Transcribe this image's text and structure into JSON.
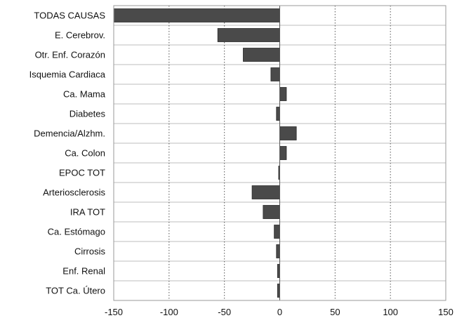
{
  "chart_data": {
    "type": "bar",
    "orientation": "horizontal",
    "categories": [
      "TODAS CAUSAS",
      "E. Cerebrov.",
      "Otr. Enf. Corazón",
      "Isquemia Cardiaca",
      "Ca. Mama",
      "Diabetes",
      "Demencia/Alzhm.",
      "Ca. Colon",
      "EPOC TOT",
      "Arteriosclerosis",
      "IRA TOT",
      "Ca. Estómago",
      "Cirrosis",
      "Enf. Renal",
      "TOT Ca. Útero"
    ],
    "values": [
      -150,
      -56,
      -33,
      -8,
      6,
      -3,
      15,
      6,
      -1,
      -25,
      -15,
      -5,
      -3,
      -2,
      -2
    ],
    "xlim": [
      -150,
      150
    ],
    "xticks": [
      -150,
      -100,
      -50,
      0,
      50,
      100,
      150
    ],
    "xtick_labels": [
      "-150",
      "-100",
      "-50",
      "0",
      "50",
      "100",
      "150"
    ],
    "grid": true,
    "legend": "none",
    "colors": {
      "bar": "#4a4a4a",
      "bar_stroke": "#2a2a2a"
    }
  }
}
